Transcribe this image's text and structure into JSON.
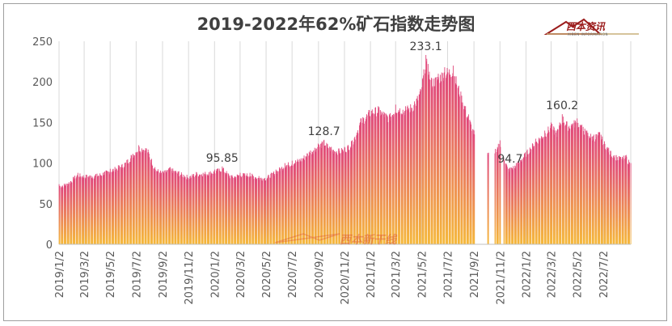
{
  "chart_data": {
    "type": "bar",
    "title": "2019-2022年62%矿石指数走势图",
    "xlabel": "",
    "ylabel": "",
    "ylim": [
      0,
      250
    ],
    "yticks": [
      0,
      50,
      100,
      150,
      200,
      250
    ],
    "grid": "vertical",
    "x_tick_labels": [
      "2019/1/2",
      "2019/3/2",
      "2019/5/2",
      "2019/7/2",
      "2019/9/2",
      "2019/11/2",
      "2020/1/2",
      "2020/3/2",
      "2020/5/2",
      "2020/7/2",
      "2020/9/2",
      "2020/11/2",
      "2021/1/2",
      "2021/3/2",
      "2021/5/2",
      "2021/7/2",
      "2021/9/2",
      "2021/11/2",
      "2022/1/2",
      "2022/3/2",
      "2022/5/2",
      "2022/7/2"
    ],
    "x_range": [
      "2019-01-02",
      "2022-09-05"
    ],
    "anchors": [
      [
        "2019-01-02",
        74
      ],
      [
        "2019-01-20",
        76
      ],
      [
        "2019-02-15",
        88
      ],
      [
        "2019-03-02",
        86
      ],
      [
        "2019-04-01",
        87
      ],
      [
        "2019-05-02",
        93
      ],
      [
        "2019-06-01",
        100
      ],
      [
        "2019-06-20",
        110
      ],
      [
        "2019-07-08",
        122
      ],
      [
        "2019-07-28",
        120
      ],
      [
        "2019-08-15",
        95
      ],
      [
        "2019-09-02",
        90
      ],
      [
        "2019-09-20",
        95
      ],
      [
        "2019-10-10",
        90
      ],
      [
        "2019-11-02",
        85
      ],
      [
        "2019-11-20",
        89
      ],
      [
        "2019-12-15",
        90
      ],
      [
        "2020-01-02",
        92
      ],
      [
        "2020-01-20",
        95.85
      ],
      [
        "2020-02-10",
        85
      ],
      [
        "2020-03-02",
        88
      ],
      [
        "2020-03-25",
        88
      ],
      [
        "2020-04-15",
        84
      ],
      [
        "2020-05-02",
        84
      ],
      [
        "2020-05-25",
        92
      ],
      [
        "2020-06-15",
        100
      ],
      [
        "2020-07-02",
        103
      ],
      [
        "2020-07-25",
        108
      ],
      [
        "2020-08-15",
        118
      ],
      [
        "2020-09-01",
        124
      ],
      [
        "2020-09-15",
        128.7
      ],
      [
        "2020-10-02",
        120
      ],
      [
        "2020-10-20",
        118
      ],
      [
        "2020-11-02",
        120
      ],
      [
        "2020-11-20",
        128
      ],
      [
        "2020-12-10",
        155
      ],
      [
        "2021-01-02",
        168
      ],
      [
        "2021-01-20",
        170
      ],
      [
        "2021-02-15",
        160
      ],
      [
        "2021-03-02",
        172
      ],
      [
        "2021-03-25",
        170
      ],
      [
        "2021-04-15",
        176
      ],
      [
        "2021-05-01",
        195
      ],
      [
        "2021-05-12",
        233.1
      ],
      [
        "2021-05-25",
        205
      ],
      [
        "2021-06-10",
        210
      ],
      [
        "2021-06-25",
        218
      ],
      [
        "2021-07-15",
        220
      ],
      [
        "2021-08-01",
        190
      ],
      [
        "2021-08-20",
        160
      ],
      [
        "2021-09-02",
        140
      ],
      [
        "2021-09-20",
        120
      ],
      [
        "2021-10-02",
        112
      ],
      [
        "2021-10-20",
        118
      ],
      [
        "2021-11-02",
        128
      ],
      [
        "2021-11-20",
        95
      ],
      [
        "2021-11-26",
        94.7
      ],
      [
        "2021-12-10",
        100
      ],
      [
        "2022-01-02",
        115
      ],
      [
        "2022-01-25",
        130
      ],
      [
        "2022-02-15",
        140
      ],
      [
        "2022-03-02",
        150
      ],
      [
        "2022-03-15",
        140
      ],
      [
        "2022-03-28",
        160.2
      ],
      [
        "2022-04-10",
        150
      ],
      [
        "2022-05-02",
        155
      ],
      [
        "2022-05-25",
        140
      ],
      [
        "2022-06-10",
        135
      ],
      [
        "2022-06-25",
        140
      ],
      [
        "2022-07-02",
        130
      ],
      [
        "2022-07-20",
        115
      ],
      [
        "2022-08-10",
        108
      ],
      [
        "2022-08-25",
        110
      ],
      [
        "2022-09-05",
        100
      ]
    ],
    "gaps": [
      [
        "2021-09-05",
        "2021-10-03"
      ],
      [
        "2021-10-07",
        "2021-10-20"
      ],
      [
        "2021-11-04",
        "2021-11-10"
      ]
    ],
    "annotations": [
      {
        "text": "95.85",
        "date": "2020-01-20",
        "value": 95.85
      },
      {
        "text": "128.7",
        "date": "2020-09-15",
        "value": 128.7
      },
      {
        "text": "233.1",
        "date": "2021-05-12",
        "value": 233.1
      },
      {
        "text": "94.7",
        "date": "2021-11-26",
        "value": 94.7
      },
      {
        "text": "160.2",
        "date": "2022-03-28",
        "value": 160.2
      }
    ],
    "colors": {
      "top": "#e0457b",
      "bottom": "#f5b83a",
      "grid": "#d9d9d9",
      "axis": "#bfbfbf"
    }
  },
  "logo": {
    "name": "西本资讯",
    "sub": "XIBEN INFORMATION"
  },
  "watermark": {
    "text": "西本新干线"
  }
}
